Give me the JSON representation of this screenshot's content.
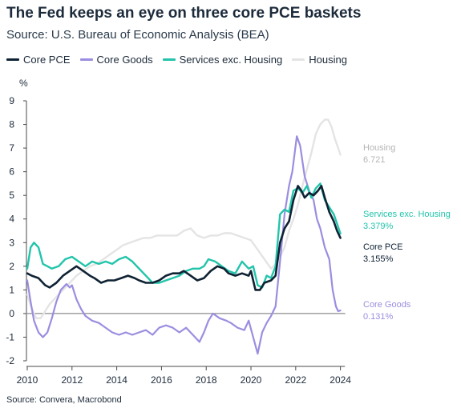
{
  "header": {
    "title": "The Fed keeps an eye on three core PCE baskets",
    "subtitle": "Source: U.S. Bureau of Economic Analysis (BEA)"
  },
  "footer": {
    "source": "Source: Convera, Macrobond"
  },
  "colors": {
    "core_pce": "#0f2233",
    "core_goods": "#9a8ee0",
    "services": "#22c4ab",
    "housing": "#e4e4e4",
    "housing_label": "#b5b5b5",
    "zero_line": "#6f6f6f",
    "axis": "#4a4a4a"
  },
  "chart_data": {
    "type": "line",
    "ylabel": "%",
    "ylim": [
      -2,
      9
    ],
    "yticks": [
      -2,
      -1,
      0,
      1,
      2,
      3,
      4,
      5,
      6,
      7,
      8,
      9
    ],
    "xlim": [
      2010,
      2024.3
    ],
    "xticks": [
      2010,
      2012,
      2014,
      2016,
      2018,
      2020,
      2022,
      2024
    ],
    "legend_position": "top",
    "series": [
      {
        "key": "core_pce",
        "name": "Core PCE",
        "end_label_name": "Core PCE",
        "end_label_value": "3.155%",
        "points": [
          [
            2010.0,
            1.7
          ],
          [
            2010.2,
            1.6
          ],
          [
            2010.5,
            1.5
          ],
          [
            2010.8,
            1.2
          ],
          [
            2011.0,
            1.1
          ],
          [
            2011.3,
            1.3
          ],
          [
            2011.6,
            1.6
          ],
          [
            2011.9,
            1.8
          ],
          [
            2012.2,
            2.0
          ],
          [
            2012.5,
            1.8
          ],
          [
            2012.8,
            1.6
          ],
          [
            2013.0,
            1.5
          ],
          [
            2013.3,
            1.3
          ],
          [
            2013.6,
            1.4
          ],
          [
            2013.9,
            1.4
          ],
          [
            2014.2,
            1.5
          ],
          [
            2014.5,
            1.6
          ],
          [
            2014.8,
            1.5
          ],
          [
            2015.0,
            1.4
          ],
          [
            2015.3,
            1.3
          ],
          [
            2015.6,
            1.3
          ],
          [
            2015.9,
            1.4
          ],
          [
            2016.2,
            1.6
          ],
          [
            2016.5,
            1.7
          ],
          [
            2016.8,
            1.7
          ],
          [
            2017.0,
            1.8
          ],
          [
            2017.3,
            1.6
          ],
          [
            2017.6,
            1.4
          ],
          [
            2017.9,
            1.5
          ],
          [
            2018.2,
            1.8
          ],
          [
            2018.5,
            2.0
          ],
          [
            2018.8,
            1.9
          ],
          [
            2019.0,
            1.7
          ],
          [
            2019.3,
            1.6
          ],
          [
            2019.6,
            1.7
          ],
          [
            2019.9,
            1.6
          ],
          [
            2020.0,
            1.8
          ],
          [
            2020.2,
            1.0
          ],
          [
            2020.4,
            1.0
          ],
          [
            2020.6,
            1.3
          ],
          [
            2020.9,
            1.4
          ],
          [
            2021.1,
            1.6
          ],
          [
            2021.3,
            3.0
          ],
          [
            2021.5,
            3.6
          ],
          [
            2021.7,
            3.9
          ],
          [
            2021.9,
            4.8
          ],
          [
            2022.1,
            5.4
          ],
          [
            2022.25,
            5.2
          ],
          [
            2022.4,
            4.9
          ],
          [
            2022.6,
            5.1
          ],
          [
            2022.8,
            5.0
          ],
          [
            2023.0,
            5.2
          ],
          [
            2023.15,
            5.4
          ],
          [
            2023.3,
            4.9
          ],
          [
            2023.5,
            4.3
          ],
          [
            2023.7,
            3.9
          ],
          [
            2023.85,
            3.5
          ],
          [
            2024.0,
            3.2
          ]
        ]
      },
      {
        "key": "core_goods",
        "name": "Core Goods",
        "end_label_name": "Core Goods",
        "end_label_value": "0.131%",
        "points": [
          [
            2010.0,
            1.4
          ],
          [
            2010.15,
            0.5
          ],
          [
            2010.3,
            -0.3
          ],
          [
            2010.5,
            -0.8
          ],
          [
            2010.7,
            -1.0
          ],
          [
            2010.9,
            -0.8
          ],
          [
            2011.1,
            -0.2
          ],
          [
            2011.3,
            0.5
          ],
          [
            2011.5,
            1.0
          ],
          [
            2011.75,
            1.25
          ],
          [
            2011.9,
            1.1
          ],
          [
            2012.0,
            1.2
          ],
          [
            2012.2,
            0.6
          ],
          [
            2012.4,
            0.2
          ],
          [
            2012.6,
            -0.1
          ],
          [
            2012.9,
            -0.3
          ],
          [
            2013.2,
            -0.4
          ],
          [
            2013.5,
            -0.6
          ],
          [
            2013.8,
            -0.8
          ],
          [
            2014.1,
            -0.9
          ],
          [
            2014.4,
            -0.8
          ],
          [
            2014.7,
            -0.9
          ],
          [
            2015.0,
            -0.8
          ],
          [
            2015.3,
            -0.7
          ],
          [
            2015.6,
            -0.9
          ],
          [
            2015.9,
            -0.6
          ],
          [
            2016.2,
            -0.5
          ],
          [
            2016.5,
            -0.6
          ],
          [
            2016.8,
            -0.8
          ],
          [
            2017.1,
            -0.6
          ],
          [
            2017.4,
            -0.9
          ],
          [
            2017.7,
            -1.2
          ],
          [
            2017.9,
            -0.8
          ],
          [
            2018.1,
            -0.3
          ],
          [
            2018.3,
            0.0
          ],
          [
            2018.6,
            -0.2
          ],
          [
            2018.9,
            -0.3
          ],
          [
            2019.1,
            -0.4
          ],
          [
            2019.4,
            -0.6
          ],
          [
            2019.7,
            -0.7
          ],
          [
            2019.9,
            -0.3
          ],
          [
            2020.1,
            -1.0
          ],
          [
            2020.3,
            -1.7
          ],
          [
            2020.5,
            -0.8
          ],
          [
            2020.7,
            -0.4
          ],
          [
            2020.9,
            -0.1
          ],
          [
            2021.1,
            0.3
          ],
          [
            2021.3,
            2.2
          ],
          [
            2021.5,
            4.2
          ],
          [
            2021.7,
            5.4
          ],
          [
            2021.85,
            6.0
          ],
          [
            2022.05,
            7.5
          ],
          [
            2022.2,
            7.1
          ],
          [
            2022.4,
            5.8
          ],
          [
            2022.6,
            5.2
          ],
          [
            2022.8,
            4.8
          ],
          [
            2022.95,
            4.0
          ],
          [
            2023.1,
            3.6
          ],
          [
            2023.3,
            2.8
          ],
          [
            2023.5,
            2.3
          ],
          [
            2023.65,
            1.0
          ],
          [
            2023.8,
            0.3
          ],
          [
            2023.9,
            0.1
          ],
          [
            2024.0,
            0.13
          ]
        ]
      },
      {
        "key": "services",
        "name": "Services exc. Housing",
        "end_label_name": "Services exc. Housing",
        "end_label_value": "3.379%",
        "points": [
          [
            2010.0,
            1.9
          ],
          [
            2010.15,
            2.8
          ],
          [
            2010.3,
            3.0
          ],
          [
            2010.5,
            2.8
          ],
          [
            2010.7,
            2.1
          ],
          [
            2010.9,
            2.0
          ],
          [
            2011.1,
            1.9
          ],
          [
            2011.4,
            2.0
          ],
          [
            2011.7,
            2.3
          ],
          [
            2012.0,
            2.4
          ],
          [
            2012.3,
            2.2
          ],
          [
            2012.6,
            2.0
          ],
          [
            2012.9,
            2.2
          ],
          [
            2013.2,
            2.1
          ],
          [
            2013.5,
            2.2
          ],
          [
            2013.8,
            2.1
          ],
          [
            2014.1,
            2.3
          ],
          [
            2014.4,
            2.4
          ],
          [
            2014.7,
            2.2
          ],
          [
            2015.0,
            1.9
          ],
          [
            2015.3,
            1.6
          ],
          [
            2015.6,
            1.3
          ],
          [
            2015.9,
            1.3
          ],
          [
            2016.2,
            1.4
          ],
          [
            2016.5,
            1.5
          ],
          [
            2016.8,
            1.6
          ],
          [
            2017.1,
            1.8
          ],
          [
            2017.4,
            1.9
          ],
          [
            2017.7,
            1.9
          ],
          [
            2017.9,
            2.0
          ],
          [
            2018.1,
            2.3
          ],
          [
            2018.4,
            2.2
          ],
          [
            2018.7,
            2.0
          ],
          [
            2019.0,
            1.8
          ],
          [
            2019.3,
            1.7
          ],
          [
            2019.6,
            2.2
          ],
          [
            2019.9,
            1.9
          ],
          [
            2020.1,
            2.0
          ],
          [
            2020.3,
            1.2
          ],
          [
            2020.5,
            1.1
          ],
          [
            2020.7,
            1.6
          ],
          [
            2020.9,
            1.5
          ],
          [
            2021.1,
            2.0
          ],
          [
            2021.3,
            4.2
          ],
          [
            2021.5,
            4.4
          ],
          [
            2021.7,
            4.3
          ],
          [
            2021.9,
            5.2
          ],
          [
            2022.1,
            5.3
          ],
          [
            2022.3,
            5.1
          ],
          [
            2022.5,
            5.4
          ],
          [
            2022.7,
            4.9
          ],
          [
            2022.9,
            5.3
          ],
          [
            2023.1,
            5.5
          ],
          [
            2023.3,
            4.8
          ],
          [
            2023.5,
            4.5
          ],
          [
            2023.7,
            4.2
          ],
          [
            2023.85,
            3.8
          ],
          [
            2024.0,
            3.38
          ]
        ]
      },
      {
        "key": "housing",
        "name": "Housing",
        "end_label_name": "Housing",
        "end_label_value": "6.721",
        "points": [
          [
            2010.0,
            0.8
          ],
          [
            2010.2,
            0.2
          ],
          [
            2010.4,
            -0.2
          ],
          [
            2010.6,
            -0.2
          ],
          [
            2010.8,
            0.1
          ],
          [
            2011.0,
            0.4
          ],
          [
            2011.3,
            0.7
          ],
          [
            2011.6,
            1.0
          ],
          [
            2011.9,
            1.3
          ],
          [
            2012.2,
            1.6
          ],
          [
            2012.5,
            1.8
          ],
          [
            2012.8,
            2.0
          ],
          [
            2013.1,
            2.1
          ],
          [
            2013.4,
            2.3
          ],
          [
            2013.7,
            2.5
          ],
          [
            2014.0,
            2.7
          ],
          [
            2014.3,
            2.9
          ],
          [
            2014.6,
            3.0
          ],
          [
            2014.9,
            3.1
          ],
          [
            2015.2,
            3.2
          ],
          [
            2015.5,
            3.2
          ],
          [
            2015.8,
            3.3
          ],
          [
            2016.1,
            3.3
          ],
          [
            2016.4,
            3.3
          ],
          [
            2016.7,
            3.3
          ],
          [
            2017.0,
            3.5
          ],
          [
            2017.3,
            3.6
          ],
          [
            2017.6,
            3.3
          ],
          [
            2017.9,
            3.2
          ],
          [
            2018.2,
            3.3
          ],
          [
            2018.5,
            3.3
          ],
          [
            2018.8,
            3.4
          ],
          [
            2019.1,
            3.4
          ],
          [
            2019.4,
            3.3
          ],
          [
            2019.7,
            3.2
          ],
          [
            2020.0,
            3.1
          ],
          [
            2020.3,
            2.7
          ],
          [
            2020.6,
            2.3
          ],
          [
            2020.9,
            1.9
          ],
          [
            2021.1,
            2.1
          ],
          [
            2021.3,
            2.4
          ],
          [
            2021.5,
            2.8
          ],
          [
            2021.7,
            3.5
          ],
          [
            2021.9,
            4.0
          ],
          [
            2022.1,
            4.6
          ],
          [
            2022.3,
            5.4
          ],
          [
            2022.5,
            6.1
          ],
          [
            2022.7,
            6.8
          ],
          [
            2022.9,
            7.6
          ],
          [
            2023.1,
            8.0
          ],
          [
            2023.3,
            8.2
          ],
          [
            2023.45,
            8.2
          ],
          [
            2023.6,
            7.9
          ],
          [
            2023.75,
            7.4
          ],
          [
            2023.9,
            7.0
          ],
          [
            2024.0,
            6.72
          ]
        ]
      }
    ]
  }
}
